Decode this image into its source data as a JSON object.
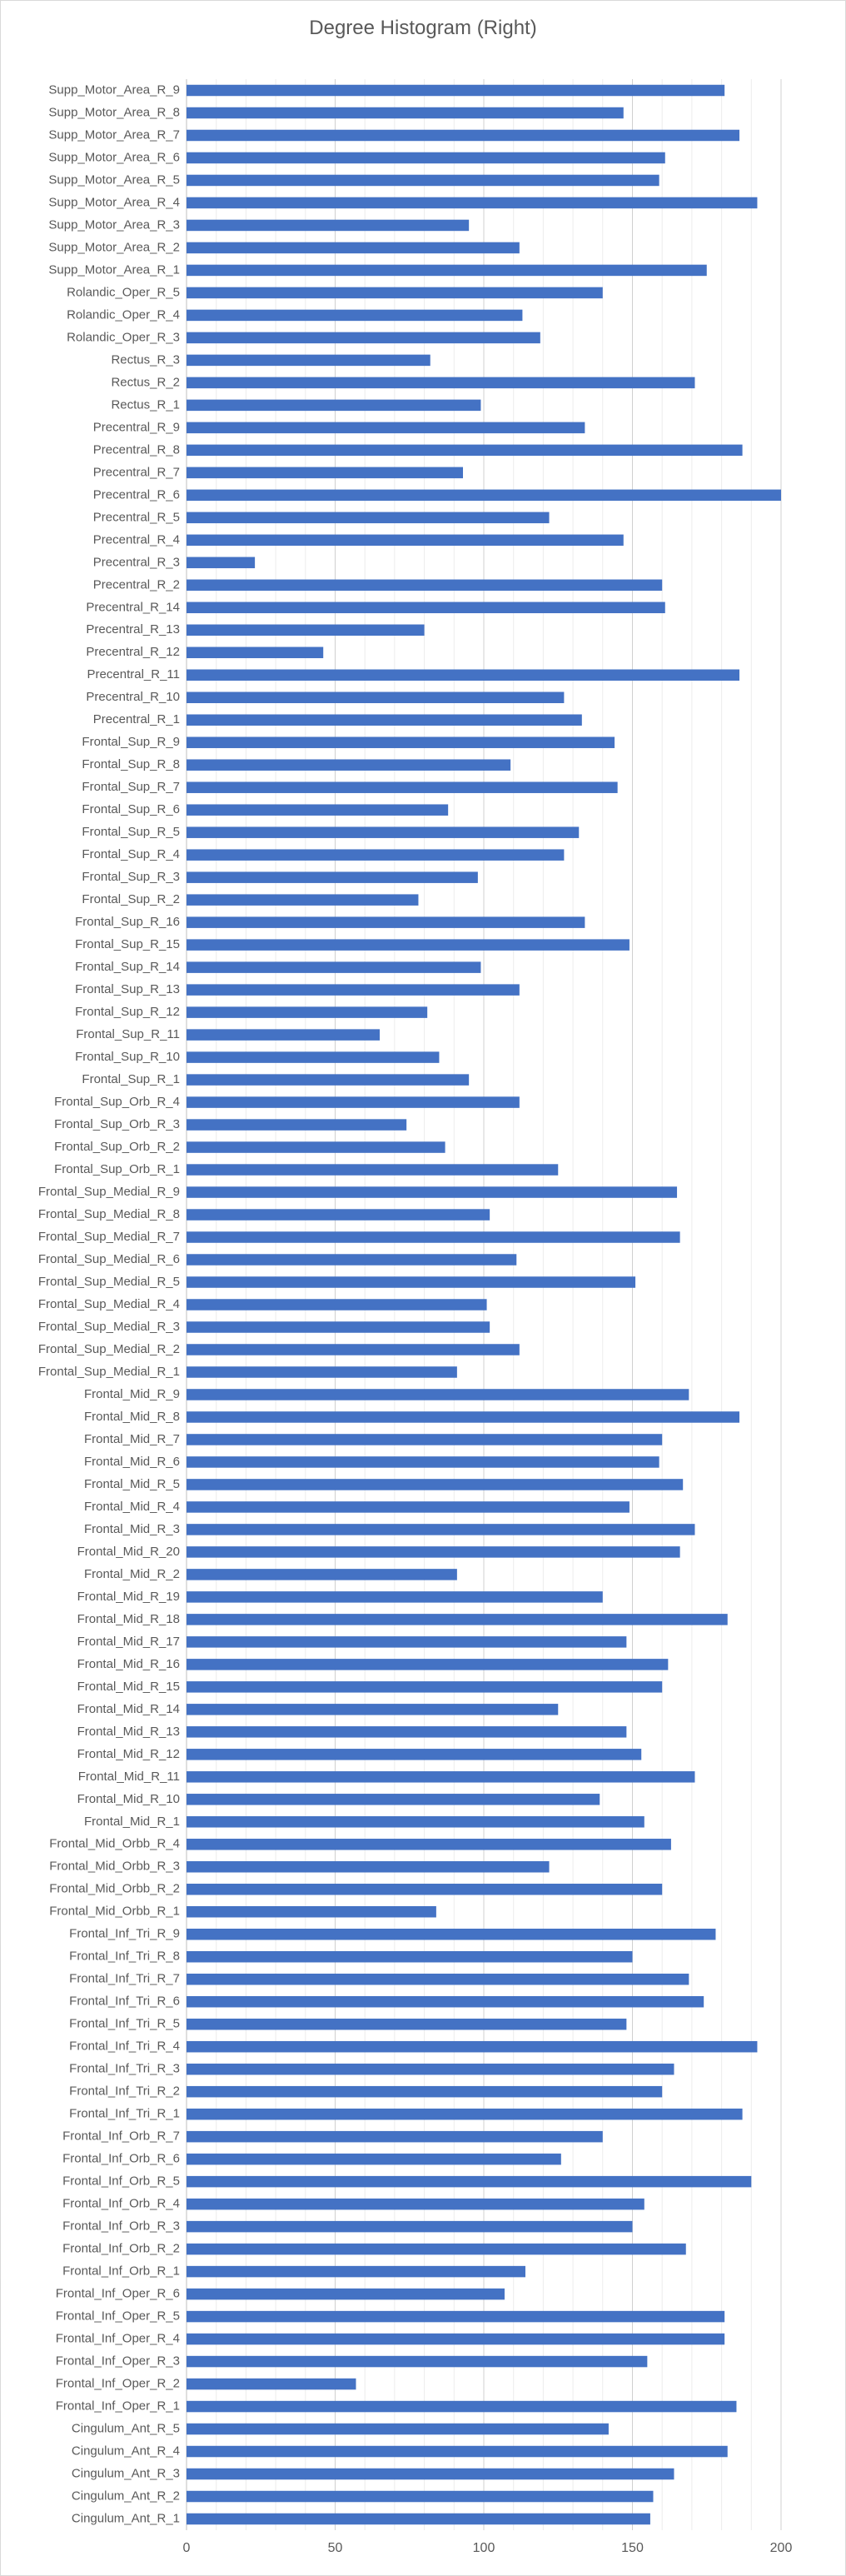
{
  "chart_data": {
    "type": "bar",
    "orientation": "horizontal",
    "title": "Degree Histogram (Right)",
    "xlabel": "",
    "ylabel": "",
    "xlim": [
      0,
      200
    ],
    "xticks": [
      0,
      50,
      100,
      150,
      200
    ],
    "grid": "vertical major and minor",
    "legend": "none",
    "bar_color": "#4472c4",
    "categories": [
      "Supp_Motor_Area_R_9",
      "Supp_Motor_Area_R_8",
      "Supp_Motor_Area_R_7",
      "Supp_Motor_Area_R_6",
      "Supp_Motor_Area_R_5",
      "Supp_Motor_Area_R_4",
      "Supp_Motor_Area_R_3",
      "Supp_Motor_Area_R_2",
      "Supp_Motor_Area_R_1",
      "Rolandic_Oper_R_5",
      "Rolandic_Oper_R_4",
      "Rolandic_Oper_R_3",
      "Rectus_R_3",
      "Rectus_R_2",
      "Rectus_R_1",
      "Precentral_R_9",
      "Precentral_R_8",
      "Precentral_R_7",
      "Precentral_R_6",
      "Precentral_R_5",
      "Precentral_R_4",
      "Precentral_R_3",
      "Precentral_R_2",
      "Precentral_R_14",
      "Precentral_R_13",
      "Precentral_R_12",
      "Precentral_R_11",
      "Precentral_R_10",
      "Precentral_R_1",
      "Frontal_Sup_R_9",
      "Frontal_Sup_R_8",
      "Frontal_Sup_R_7",
      "Frontal_Sup_R_6",
      "Frontal_Sup_R_5",
      "Frontal_Sup_R_4",
      "Frontal_Sup_R_3",
      "Frontal_Sup_R_2",
      "Frontal_Sup_R_16",
      "Frontal_Sup_R_15",
      "Frontal_Sup_R_14",
      "Frontal_Sup_R_13",
      "Frontal_Sup_R_12",
      "Frontal_Sup_R_11",
      "Frontal_Sup_R_10",
      "Frontal_Sup_R_1",
      "Frontal_Sup_Orb_R_4",
      "Frontal_Sup_Orb_R_3",
      "Frontal_Sup_Orb_R_2",
      "Frontal_Sup_Orb_R_1",
      "Frontal_Sup_Medial_R_9",
      "Frontal_Sup_Medial_R_8",
      "Frontal_Sup_Medial_R_7",
      "Frontal_Sup_Medial_R_6",
      "Frontal_Sup_Medial_R_5",
      "Frontal_Sup_Medial_R_4",
      "Frontal_Sup_Medial_R_3",
      "Frontal_Sup_Medial_R_2",
      "Frontal_Sup_Medial_R_1",
      "Frontal_Mid_R_9",
      "Frontal_Mid_R_8",
      "Frontal_Mid_R_7",
      "Frontal_Mid_R_6",
      "Frontal_Mid_R_5",
      "Frontal_Mid_R_4",
      "Frontal_Mid_R_3",
      "Frontal_Mid_R_20",
      "Frontal_Mid_R_2",
      "Frontal_Mid_R_19",
      "Frontal_Mid_R_18",
      "Frontal_Mid_R_17",
      "Frontal_Mid_R_16",
      "Frontal_Mid_R_15",
      "Frontal_Mid_R_14",
      "Frontal_Mid_R_13",
      "Frontal_Mid_R_12",
      "Frontal_Mid_R_11",
      "Frontal_Mid_R_10",
      "Frontal_Mid_R_1",
      "Frontal_Mid_Orbb_R_4",
      "Frontal_Mid_Orbb_R_3",
      "Frontal_Mid_Orbb_R_2",
      "Frontal_Mid_Orbb_R_1",
      "Frontal_Inf_Tri_R_9",
      "Frontal_Inf_Tri_R_8",
      "Frontal_Inf_Tri_R_7",
      "Frontal_Inf_Tri_R_6",
      "Frontal_Inf_Tri_R_5",
      "Frontal_Inf_Tri_R_4",
      "Frontal_Inf_Tri_R_3",
      "Frontal_Inf_Tri_R_2",
      "Frontal_Inf_Tri_R_1",
      "Frontal_Inf_Orb_R_7",
      "Frontal_Inf_Orb_R_6",
      "Frontal_Inf_Orb_R_5",
      "Frontal_Inf_Orb_R_4",
      "Frontal_Inf_Orb_R_3",
      "Frontal_Inf_Orb_R_2",
      "Frontal_Inf_Orb_R_1",
      "Frontal_Inf_Oper_R_6",
      "Frontal_Inf_Oper_R_5",
      "Frontal_Inf_Oper_R_4",
      "Frontal_Inf_Oper_R_3",
      "Frontal_Inf_Oper_R_2",
      "Frontal_Inf_Oper_R_1",
      "Cingulum_Ant_R_5",
      "Cingulum_Ant_R_4",
      "Cingulum_Ant_R_3",
      "Cingulum_Ant_R_2",
      "Cingulum_Ant_R_1"
    ],
    "values": [
      181,
      147,
      186,
      161,
      159,
      192,
      95,
      112,
      175,
      140,
      113,
      119,
      82,
      171,
      99,
      134,
      187,
      93,
      201,
      122,
      147,
      23,
      160,
      161,
      80,
      46,
      186,
      127,
      133,
      144,
      109,
      145,
      88,
      132,
      127,
      98,
      78,
      134,
      149,
      99,
      112,
      81,
      65,
      85,
      95,
      112,
      74,
      87,
      125,
      165,
      102,
      166,
      111,
      151,
      101,
      102,
      112,
      91,
      169,
      186,
      160,
      159,
      167,
      149,
      171,
      166,
      91,
      140,
      182,
      148,
      162,
      160,
      125,
      148,
      153,
      171,
      139,
      154,
      163,
      122,
      160,
      84,
      178,
      150,
      169,
      174,
      148,
      192,
      164,
      160,
      187,
      140,
      126,
      190,
      154,
      150,
      168,
      114,
      107,
      181,
      181,
      155,
      57,
      185,
      142,
      182,
      164,
      157,
      156
    ]
  }
}
